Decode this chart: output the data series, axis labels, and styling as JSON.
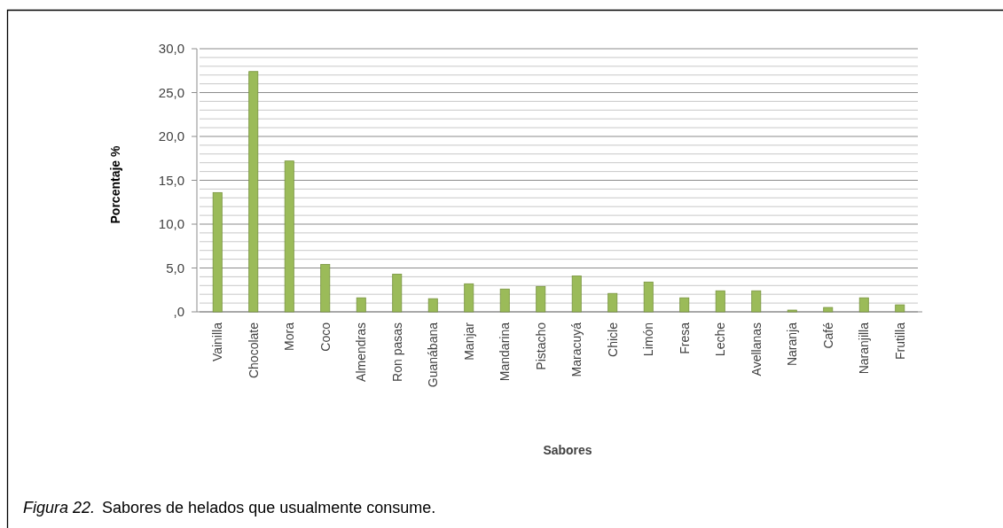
{
  "chart_data": {
    "type": "bar",
    "xlabel": "Sabores",
    "ylabel": "Porcentaje %",
    "categories": [
      "Vainilla",
      "Chocolate",
      "Mora",
      "Coco",
      "Almendras",
      "Ron pasas",
      "Guanábana",
      "Manjar",
      "Mandarina",
      "Pistacho",
      "Maracuyá",
      "Chicle",
      "Limón",
      "Fresa",
      "Leche",
      "Avellanas",
      "Naranja",
      "Café",
      "Naranjilla",
      "Frutilla"
    ],
    "values": [
      13.6,
      27.4,
      17.2,
      5.4,
      1.6,
      4.3,
      1.5,
      3.2,
      2.6,
      2.9,
      4.1,
      2.1,
      3.4,
      1.6,
      2.4,
      2.4,
      0.2,
      0.5,
      1.6,
      0.8
    ],
    "color": "#9bbb59",
    "ylim": [
      0,
      30
    ],
    "yticks": [
      {
        "value": 0,
        "label": ",0"
      },
      {
        "value": 1,
        "label": null
      },
      {
        "value": 2,
        "label": null
      },
      {
        "value": 3,
        "label": null
      },
      {
        "value": 4,
        "label": null
      },
      {
        "value": 5,
        "label": "5,0"
      },
      {
        "value": 6,
        "label": null
      },
      {
        "value": 7,
        "label": null
      },
      {
        "value": 8,
        "label": null
      },
      {
        "value": 9,
        "label": null
      },
      {
        "value": 10,
        "label": "10,0"
      },
      {
        "value": 11,
        "label": null
      },
      {
        "value": 12,
        "label": null
      },
      {
        "value": 13,
        "label": null
      },
      {
        "value": 14,
        "label": null
      },
      {
        "value": 15,
        "label": "15,0"
      },
      {
        "value": 16,
        "label": null
      },
      {
        "value": 17,
        "label": null
      },
      {
        "value": 18,
        "label": null
      },
      {
        "value": 19,
        "label": null
      },
      {
        "value": 20,
        "label": "20,0"
      },
      {
        "value": 21,
        "label": null
      },
      {
        "value": 22,
        "label": null
      },
      {
        "value": 23,
        "label": null
      },
      {
        "value": 24,
        "label": null
      },
      {
        "value": 25,
        "label": "25,0"
      },
      {
        "value": 26,
        "label": null
      },
      {
        "value": 27,
        "label": null
      },
      {
        "value": 28,
        "label": null
      },
      {
        "value": 29,
        "label": null
      },
      {
        "value": 30,
        "label": "30,0"
      }
    ],
    "grid": true,
    "annotations": [
      "Figura 22.",
      "Sabores de helados que usualmente consume."
    ]
  }
}
